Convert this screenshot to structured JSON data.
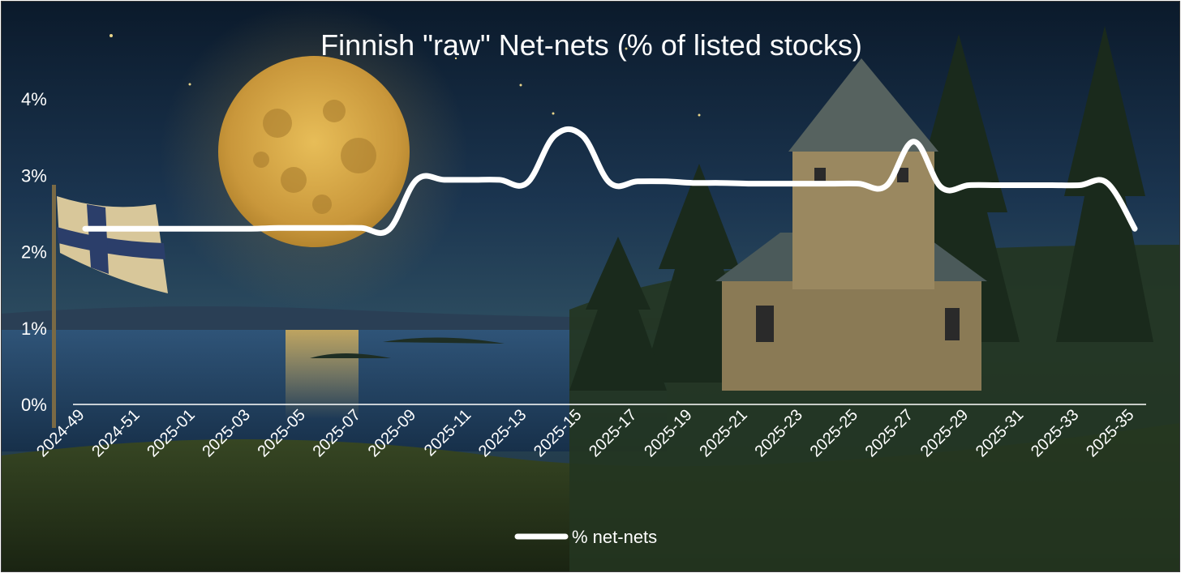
{
  "chart_data": {
    "type": "line",
    "title": "Finnish \"raw\" Net-nets (% of listed stocks)",
    "xlabel": "",
    "ylabel": "",
    "ylim": [
      0,
      4
    ],
    "yticks": [
      "0%",
      "1%",
      "2%",
      "3%",
      "4%"
    ],
    "grid": false,
    "legend_position": "bottom-center",
    "x": [
      "2024-49",
      "2024-50",
      "2024-51",
      "2024-52",
      "2025-01",
      "2025-02",
      "2025-03",
      "2025-04",
      "2025-05",
      "2025-06",
      "2025-07",
      "2025-08",
      "2025-09",
      "2025-10",
      "2025-11",
      "2025-12",
      "2025-13",
      "2025-14",
      "2025-15",
      "2025-16",
      "2025-17",
      "2025-18",
      "2025-19",
      "2025-20",
      "2025-21",
      "2025-22",
      "2025-23",
      "2025-24",
      "2025-25",
      "2025-26",
      "2025-27",
      "2025-28",
      "2025-29",
      "2025-30",
      "2025-31",
      "2025-32",
      "2025-33",
      "2025-34",
      "2025-35"
    ],
    "xtick_labels": [
      "2024-49",
      "2024-51",
      "2025-01",
      "2025-03",
      "2025-05",
      "2025-07",
      "2025-09",
      "2025-11",
      "2025-13",
      "2025-15",
      "2025-17",
      "2025-19",
      "2025-21",
      "2025-23",
      "2025-25",
      "2025-27",
      "2025-29",
      "2025-31",
      "2025-33",
      "2025-35"
    ],
    "series": [
      {
        "name": "% net-nets",
        "color": "#ffffff",
        "values": [
          2.3,
          2.3,
          2.3,
          2.3,
          2.3,
          2.3,
          2.3,
          2.31,
          2.31,
          2.31,
          2.31,
          2.29,
          2.94,
          2.94,
          2.94,
          2.94,
          2.9,
          3.52,
          3.52,
          2.9,
          2.92,
          2.92,
          2.9,
          2.9,
          2.89,
          2.89,
          2.89,
          2.89,
          2.89,
          2.86,
          3.44,
          2.84,
          2.87,
          2.87,
          2.87,
          2.87,
          2.87,
          2.9,
          2.3
        ]
      }
    ]
  },
  "colors": {
    "sky_top": "#0b1a2b",
    "sky_mid": "#1f3f5a",
    "water": "#25466a",
    "forest": "#1c2c1a",
    "moon": "#d6a945",
    "line": "#ffffff"
  },
  "background_icons": [
    "moon-icon",
    "finnish-flag-icon",
    "church-icon",
    "pine-tree-icon"
  ]
}
